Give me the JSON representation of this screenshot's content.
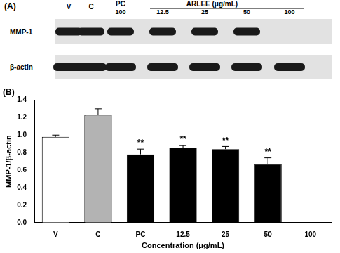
{
  "panel_a": {
    "label": "(A)",
    "lane_labels": [
      "V",
      "C",
      "PC"
    ],
    "pc_concentration": "100",
    "group": {
      "label": "ARLEE (μg/mL)",
      "lanes": [
        "12.5",
        "25",
        "50",
        "100"
      ]
    },
    "rows": [
      "MMP-1",
      "β-actin"
    ]
  },
  "chart_data": {
    "type": "bar",
    "title": "(B)",
    "categories": [
      "V",
      "C",
      "PC",
      "12.5",
      "25",
      "50",
      "100"
    ],
    "values": [
      0.98,
      1.23,
      0.78,
      0.85,
      0.84,
      0.67,
      0
    ],
    "errors": [
      0.02,
      0.07,
      0.06,
      0.03,
      0.03,
      0.07,
      0
    ],
    "colors": [
      "#ffffff",
      "#b3b3b3",
      "#000000",
      "#000000",
      "#000000",
      "#000000",
      "#000000"
    ],
    "x_label": "Concentration (μg/mL)",
    "y_label": "MMP-1/β-actin",
    "ylim": [
      0,
      1.4
    ],
    "yticks": [
      {
        "value": 0,
        "label": "0.0"
      },
      {
        "value": 0.2,
        "label": "0.2"
      },
      {
        "value": 0.4,
        "label": "0.4"
      },
      {
        "value": 0.6,
        "label": "0.6"
      },
      {
        "value": 0.8,
        "label": "0.8"
      },
      {
        "value": 1.0,
        "label": "1.0"
      },
      {
        "value": 1.2,
        "label": "1.2"
      },
      {
        "value": 1.4,
        "label": "1.4"
      }
    ],
    "annotations": [
      {
        "x": "PC",
        "text": "**"
      },
      {
        "x": "12.5",
        "text": "**"
      },
      {
        "x": "25",
        "text": "**"
      },
      {
        "x": "50",
        "text": "**"
      }
    ],
    "grid": false
  }
}
